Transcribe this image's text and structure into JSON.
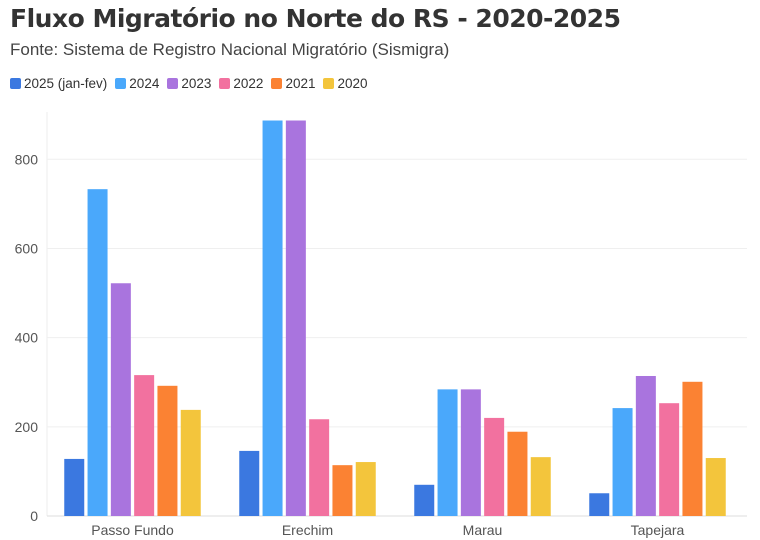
{
  "chart_data": {
    "type": "bar",
    "title": "Fluxo Migratório no Norte do RS - 2020-2025",
    "subtitle": "Fonte: Sistema de Registro Nacional Migratório (Sismigra)",
    "xlabel": "",
    "ylabel": "",
    "ylim": [
      0,
      900
    ],
    "yticks": [
      "0",
      "200",
      "400",
      "600",
      "800"
    ],
    "grid": true,
    "legend_position": "top-left",
    "categories": [
      "Passo Fundo",
      "Erechim",
      "Marau",
      "Tapejara"
    ],
    "series": [
      {
        "name": "2025 (jan-fev)",
        "color": "#3b78e0",
        "values": [
          128,
          146,
          70,
          51
        ]
      },
      {
        "name": "2024",
        "color": "#4aa8fb",
        "values": [
          733,
          887,
          284,
          242
        ]
      },
      {
        "name": "2023",
        "color": "#a974de",
        "values": [
          522,
          887,
          284,
          314
        ]
      },
      {
        "name": "2022",
        "color": "#f2719f",
        "values": [
          316,
          217,
          220,
          253
        ]
      },
      {
        "name": "2021",
        "color": "#fb8233",
        "values": [
          292,
          114,
          189,
          301
        ]
      },
      {
        "name": "2020",
        "color": "#f3c53c",
        "values": [
          238,
          121,
          132,
          130
        ]
      }
    ]
  }
}
